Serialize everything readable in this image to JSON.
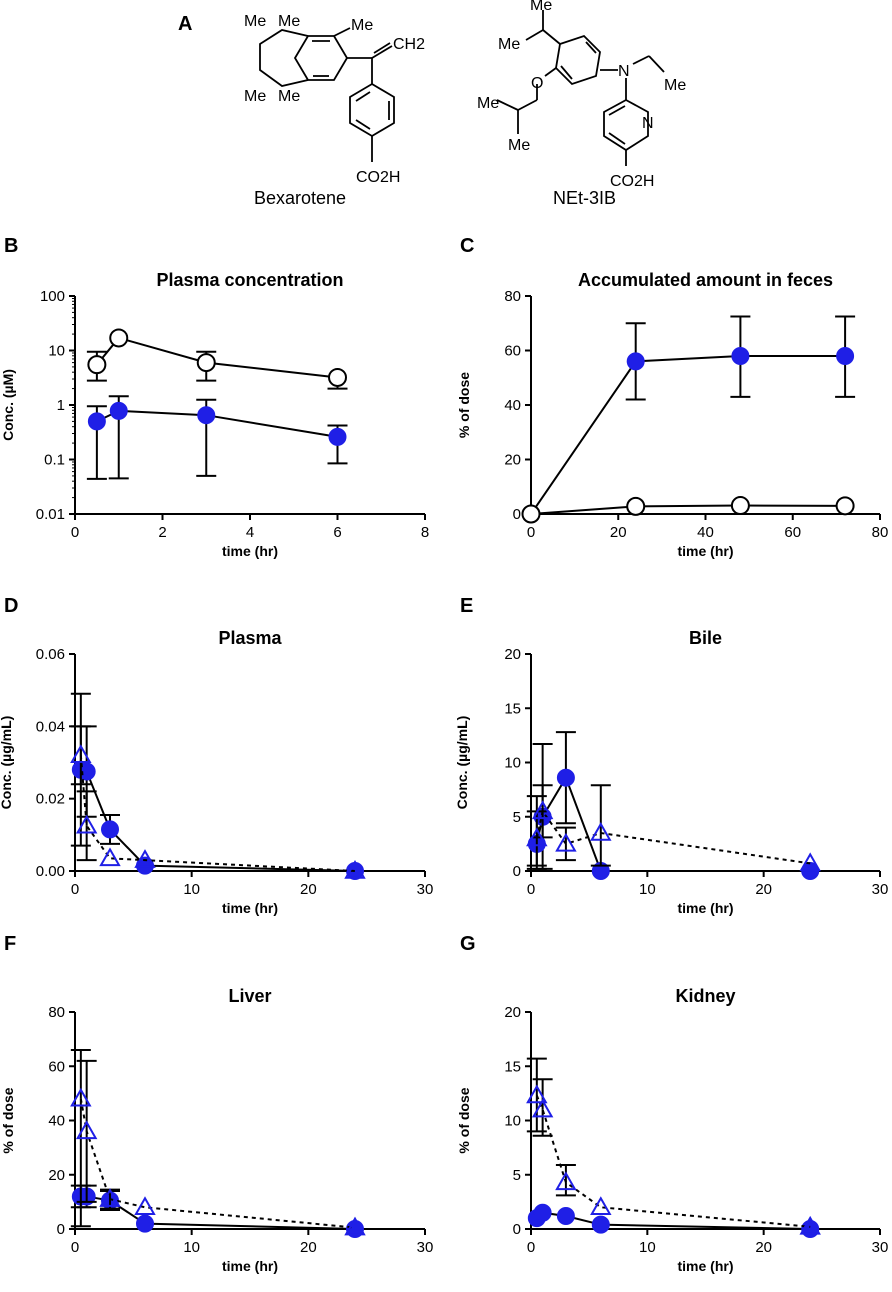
{
  "panel_labels": [
    "A",
    "B",
    "C",
    "D",
    "E",
    "F",
    "G"
  ],
  "compounds": {
    "bexarotene": {
      "name": "Bexarotene",
      "groups": [
        "Me",
        "Me",
        "Me",
        "Me",
        "Me",
        "CH2",
        "CO2H"
      ]
    },
    "net3ib": {
      "name": "NEt-3IB",
      "groups": [
        "Me",
        "Me",
        "O",
        "N",
        "Me",
        "Me",
        "Me",
        "N",
        "CO2H"
      ]
    }
  },
  "colors": {
    "blue": "#1f1fe6",
    "black": "#000000",
    "white": "#ffffff"
  },
  "chart_data": [
    {
      "id": "B",
      "type": "line",
      "title": "Plasma concentration",
      "xlabel": "time (hr)",
      "ylabel": "Conc. (µM)",
      "yscale": "log",
      "xlim": [
        0,
        8
      ],
      "ylim": [
        0.01,
        100
      ],
      "xticks": [
        0,
        2,
        4,
        6,
        8
      ],
      "yticks": [
        0.01,
        0.1,
        1,
        10,
        100
      ],
      "xtick_labels": [
        "0",
        "2",
        "4",
        "6",
        "8"
      ],
      "ytick_labels": [
        "0.01",
        "0.1",
        "1",
        "10",
        "100"
      ],
      "series": [
        {
          "name": "open circles",
          "marker": "circle-open",
          "line": "solid",
          "x": [
            0.5,
            1,
            3,
            6
          ],
          "y": [
            5.5,
            17,
            6,
            3.2
          ],
          "err_hi": [
            9.5,
            null,
            9.5,
            null
          ],
          "err_lo": [
            2.8,
            null,
            2.8,
            2.0
          ]
        },
        {
          "name": "blue circles",
          "marker": "circle-filled",
          "line": "solid",
          "x": [
            0.5,
            1,
            3,
            6
          ],
          "y": [
            0.5,
            0.78,
            0.65,
            0.26
          ],
          "err_hi": [
            0.95,
            1.45,
            1.25,
            0.42
          ],
          "err_lo": [
            0.044,
            0.045,
            0.05,
            0.085
          ]
        }
      ]
    },
    {
      "id": "C",
      "type": "line",
      "title": "Accumulated amount in feces",
      "xlabel": "time (hr)",
      "ylabel": "% of dose",
      "yscale": "linear",
      "xlim": [
        0,
        80
      ],
      "ylim": [
        0,
        80
      ],
      "xticks": [
        0,
        20,
        40,
        60,
        80
      ],
      "yticks": [
        0,
        20,
        40,
        60,
        80
      ],
      "xtick_labels": [
        "0",
        "20",
        "40",
        "60",
        "80"
      ],
      "ytick_labels": [
        "0",
        "20",
        "40",
        "60",
        "80"
      ],
      "series": [
        {
          "name": "blue circles",
          "marker": "circle-filled",
          "line": "solid",
          "x": [
            0,
            24,
            48,
            72
          ],
          "y": [
            0,
            56,
            58,
            58
          ],
          "err_hi": [
            null,
            70,
            72.5,
            72.5
          ],
          "err_lo": [
            null,
            42,
            43,
            43
          ]
        },
        {
          "name": "open circles",
          "marker": "circle-open",
          "line": "solid",
          "x": [
            0,
            24,
            48,
            72
          ],
          "y": [
            0,
            2.8,
            3.1,
            3.0
          ],
          "err_hi": [
            null,
            null,
            null,
            null
          ],
          "err_lo": [
            null,
            null,
            null,
            null
          ]
        }
      ]
    },
    {
      "id": "D",
      "type": "line",
      "title": "Plasma",
      "xlabel": "time (hr)",
      "ylabel": "Conc. (µg/mL)",
      "yscale": "linear",
      "xlim": [
        0,
        30
      ],
      "ylim": [
        0,
        0.06
      ],
      "xticks": [
        0,
        10,
        20,
        30
      ],
      "yticks": [
        0,
        0.02,
        0.04,
        0.06
      ],
      "xtick_labels": [
        "0",
        "10",
        "20",
        "30"
      ],
      "ytick_labels": [
        "0.00",
        "0.02",
        "0.04",
        "0.06"
      ],
      "series": [
        {
          "name": "blue circles",
          "marker": "circle-filled",
          "line": "solid",
          "x": [
            0.5,
            1,
            3,
            6,
            24
          ],
          "y": [
            0.028,
            0.0275,
            0.0115,
            0.0015,
            0
          ],
          "err_hi": [
            0.049,
            0.04,
            0.0155,
            null,
            null
          ],
          "err_lo": [
            0.007,
            0.015,
            0.0075,
            null,
            null
          ]
        },
        {
          "name": "blue triangles",
          "marker": "triangle-open",
          "line": "dotted",
          "x": [
            0.5,
            1,
            3,
            6,
            24
          ],
          "y": [
            0.032,
            0.0125,
            0.0035,
            0.003,
            0
          ],
          "err_hi": [
            0.04,
            0.022,
            null,
            null,
            null
          ],
          "err_lo": [
            0.024,
            0.003,
            null,
            null,
            null
          ]
        }
      ]
    },
    {
      "id": "E",
      "type": "line",
      "title": "Bile",
      "xlabel": "time (hr)",
      "ylabel": "Conc. (µg/mL)",
      "yscale": "linear",
      "xlim": [
        0,
        30
      ],
      "ylim": [
        0,
        20
      ],
      "xticks": [
        0,
        10,
        20,
        30
      ],
      "yticks": [
        0,
        5,
        10,
        15,
        20
      ],
      "xtick_labels": [
        "0",
        "10",
        "20",
        "30"
      ],
      "ytick_labels": [
        "0",
        "5",
        "10",
        "15",
        "20"
      ],
      "series": [
        {
          "name": "blue circles",
          "marker": "circle-filled",
          "line": "solid",
          "x": [
            0.5,
            1,
            3,
            6,
            24
          ],
          "y": [
            2.5,
            5.0,
            8.6,
            0,
            0
          ],
          "err_hi": [
            6.9,
            11.7,
            12.8,
            null,
            null
          ],
          "err_lo": [
            0.2,
            0.2,
            4.4,
            null,
            null
          ]
        },
        {
          "name": "blue triangles",
          "marker": "triangle-open",
          "line": "dotted",
          "x": [
            0.5,
            1,
            3,
            6,
            24
          ],
          "y": [
            3.0,
            5.5,
            2.5,
            3.5,
            0.7
          ],
          "err_hi": [
            5.5,
            7.9,
            4.0,
            7.9,
            null
          ],
          "err_lo": [
            0.5,
            3.1,
            1.0,
            0.5,
            null
          ]
        }
      ]
    },
    {
      "id": "F",
      "type": "line",
      "title": "Liver",
      "xlabel": "time (hr)",
      "ylabel": "% of dose",
      "yscale": "linear",
      "xlim": [
        0,
        30
      ],
      "ylim": [
        0,
        80
      ],
      "xticks": [
        0,
        10,
        20,
        30
      ],
      "yticks": [
        0,
        20,
        40,
        60,
        80
      ],
      "xtick_labels": [
        "0",
        "10",
        "20",
        "30"
      ],
      "ytick_labels": [
        "0",
        "20",
        "40",
        "60",
        "80"
      ],
      "series": [
        {
          "name": "blue circles",
          "marker": "circle-filled",
          "line": "solid",
          "x": [
            0.5,
            1,
            3,
            6,
            24
          ],
          "y": [
            12,
            12,
            10.5,
            2,
            0
          ],
          "err_hi": [
            16,
            16,
            14,
            null,
            null
          ],
          "err_lo": [
            8,
            8,
            7,
            null,
            null
          ]
        },
        {
          "name": "blue triangles",
          "marker": "triangle-open",
          "line": "dotted",
          "x": [
            0.5,
            1,
            3,
            6,
            24
          ],
          "y": [
            48,
            36,
            11,
            8,
            0.5
          ],
          "err_hi": [
            66,
            62,
            14.5,
            null,
            null
          ],
          "err_lo": [
            1,
            10,
            7.5,
            null,
            null
          ]
        }
      ]
    },
    {
      "id": "G",
      "type": "line",
      "title": "Kidney",
      "xlabel": "time (hr)",
      "ylabel": "% of dose",
      "yscale": "linear",
      "xlim": [
        0,
        30
      ],
      "ylim": [
        0,
        20
      ],
      "xticks": [
        0,
        10,
        20,
        30
      ],
      "yticks": [
        0,
        5,
        10,
        15,
        20
      ],
      "xtick_labels": [
        "0",
        "10",
        "20",
        "30"
      ],
      "ytick_labels": [
        "0",
        "5",
        "10",
        "15",
        "20"
      ],
      "series": [
        {
          "name": "blue circles",
          "marker": "circle-filled",
          "line": "solid",
          "x": [
            0.5,
            1,
            3,
            6,
            24
          ],
          "y": [
            1.0,
            1.5,
            1.2,
            0.4,
            0
          ],
          "err_hi": [
            null,
            null,
            null,
            null,
            null
          ],
          "err_lo": [
            null,
            null,
            null,
            null,
            null
          ]
        },
        {
          "name": "blue triangles",
          "marker": "triangle-open",
          "line": "dotted",
          "x": [
            0.5,
            1,
            3,
            6,
            24
          ],
          "y": [
            12.3,
            11.0,
            4.3,
            2.0,
            0.2
          ],
          "err_hi": [
            15.7,
            13.8,
            5.9,
            null,
            null
          ],
          "err_lo": [
            9.0,
            8.6,
            3.1,
            null,
            null
          ]
        }
      ]
    }
  ]
}
